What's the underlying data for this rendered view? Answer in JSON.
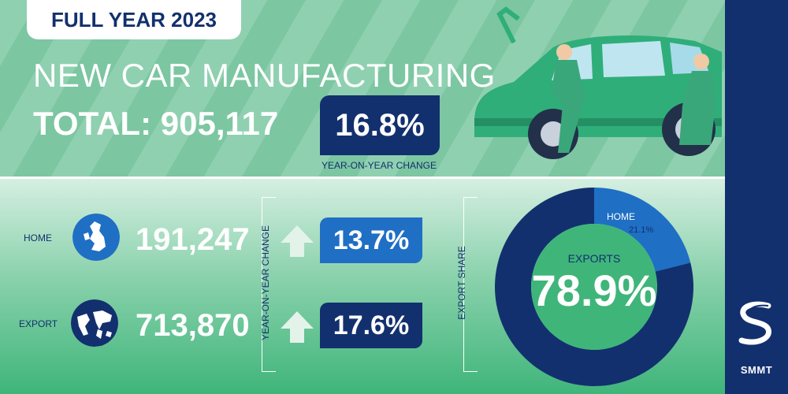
{
  "header": {
    "badge": "FULL YEAR 2023",
    "title": "NEW CAR MANUFACTURING",
    "total_label": "TOTAL: 905,117"
  },
  "summary": {
    "change_value": "16.8%",
    "change_caption": "YEAR-ON-YEAR CHANGE"
  },
  "rows": [
    {
      "label": "HOME",
      "units": "191,247",
      "change": "13.7%",
      "box_color": "#1f6fc4"
    },
    {
      "label": "EXPORT",
      "units": "713,870",
      "change": "17.6%",
      "box_color": "#13306e"
    }
  ],
  "yoy_caption": "YEAR-ON-YEAR CHANGE",
  "share_caption": "EXPORT SHARE",
  "donut": {
    "center_label": "EXPORTS",
    "center_value": "78.9%",
    "home_label": "HOME",
    "home_value": "21.1%"
  },
  "brand": {
    "name": "SMMT",
    "bar_color": "#13306e"
  },
  "colors": {
    "navy": "#13306e",
    "blue": "#1f6fc4",
    "green": "#3fb57a",
    "arrow": "#e3f3ea"
  },
  "chart_data": {
    "type": "pie",
    "title": "",
    "categories": [
      "EXPORTS",
      "HOME"
    ],
    "values": [
      78.9,
      21.1
    ],
    "units": "%",
    "series": [
      {
        "name": "HOME",
        "units": 191247,
        "yoy_change_pct": 13.7
      },
      {
        "name": "EXPORT",
        "units": 713870,
        "yoy_change_pct": 17.6
      }
    ],
    "total_units": 905117,
    "total_yoy_change_pct": 16.8
  }
}
